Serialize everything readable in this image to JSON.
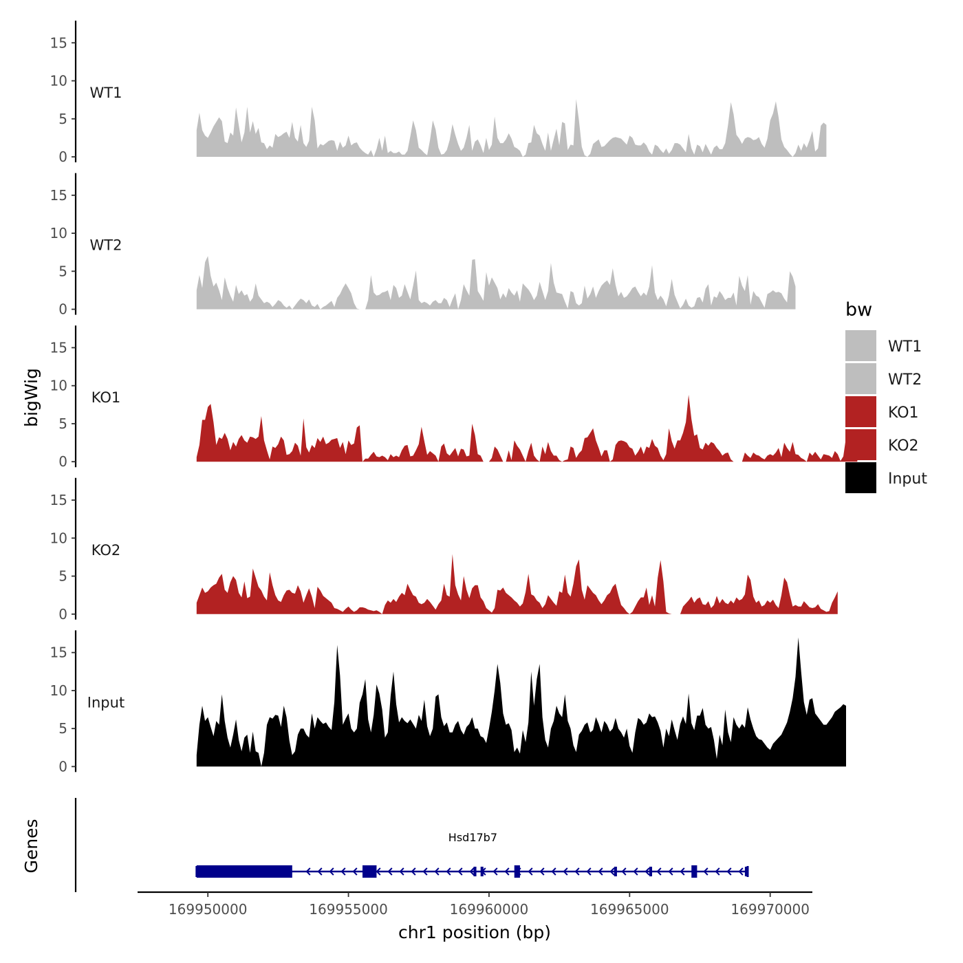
{
  "chart_data": {
    "type": "area",
    "title": "",
    "xlabel": "chr1 position (bp)",
    "ylabel": "bigWig",
    "genes_panel_label": "Genes",
    "legend": {
      "title": "bw",
      "position": "right",
      "entries": [
        {
          "label": "WT1",
          "color": "#bebebe"
        },
        {
          "label": "WT2",
          "color": "#bebebe"
        },
        {
          "label": "KO1",
          "color": "#b22222"
        },
        {
          "label": "KO2",
          "color": "#b22222"
        },
        {
          "label": "Input",
          "color": "#000000"
        }
      ]
    },
    "xlim": [
      169947500,
      169971500
    ],
    "x_ticks": [
      169950000,
      169955000,
      169960000,
      169965000,
      169970000
    ],
    "x_tick_labels": [
      "169950000",
      "169955000",
      "169960000",
      "169965000",
      "169970000"
    ],
    "ylim": [
      0,
      18
    ],
    "y_ticks": [
      0,
      5,
      10,
      15
    ],
    "y_tick_labels": [
      "0",
      "5",
      "10",
      "15"
    ],
    "x_start": 169949600,
    "x_step": 100,
    "series": [
      {
        "name": "WT1",
        "color": "#bebebe",
        "values": [
          3.5,
          5.8,
          3.5,
          2.8,
          2.5,
          3.2,
          4.0,
          4.6,
          5.2,
          4.7,
          2.0,
          1.8,
          3.2,
          2.8,
          6.5,
          4.2,
          1.9,
          3.2,
          6.6,
          3.2,
          4.7,
          3.0,
          3.8,
          1.9,
          1.8,
          1.0,
          1.5,
          1.2,
          3.0,
          2.6,
          2.8,
          3.1,
          3.3,
          2.5,
          4.6,
          2.5,
          2.0,
          4.2,
          1.8,
          1.3,
          2.1,
          6.6,
          4.8,
          1.1,
          1.7,
          1.5,
          1.8,
          2.1,
          2.2,
          2.1,
          0.8,
          2.0,
          1.2,
          1.5,
          2.8,
          1.5,
          1.8,
          1.9,
          1.2,
          0.8,
          0.5,
          0.3,
          0.9,
          0,
          1.0,
          2.5,
          0.8,
          2.8,
          0.5,
          0.8,
          0.5,
          0.5,
          0.7,
          0.3,
          0.3,
          0.8,
          2.7,
          4.8,
          3.5,
          1.2,
          0.9,
          0.5,
          0.2,
          2.2,
          4.8,
          3.6,
          1.2,
          0.3,
          0.4,
          0.9,
          2.2,
          4.3,
          2.9,
          1.7,
          0.8,
          1.2,
          2.5,
          4.2,
          0.8,
          2.0,
          2.3,
          1.5,
          0.5,
          2.5,
          0.9,
          1.6,
          5.3,
          2.5,
          1.8,
          1.8,
          2.3,
          3.1,
          2.4,
          1.3,
          1.1,
          0.8,
          0,
          0.3,
          1.8,
          1.9,
          4.2,
          3.1,
          2.8,
          1.7,
          0.8,
          3.2,
          0.8,
          2.3,
          3.7,
          1.5,
          4.6,
          4.4,
          0.9,
          1.6,
          1.5,
          7.6,
          4.8,
          1.3,
          0.2,
          0,
          0.4,
          1.7,
          2.0,
          2.3,
          1.3,
          1.4,
          1.8,
          2.2,
          2.5,
          2.6,
          2.5,
          2.4,
          2.0,
          1.6,
          2.8,
          2.5,
          1.6,
          1.5,
          1.5,
          1.9,
          1.5,
          0.7,
          0.3,
          1.6,
          1.4,
          0.9,
          0.5,
          1.1,
          0.4,
          0.9,
          1.8,
          1.8,
          1.6,
          1.1,
          0.6,
          3.0,
          1.1,
          0.3,
          1.6,
          1.4,
          0.6,
          1.7,
          1.0,
          0.3,
          1.2,
          1.5,
          1.0,
          1.0,
          1.8,
          4.2,
          7.2,
          5.6,
          2.9,
          2.4,
          1.7,
          2.4,
          2.6,
          2.5,
          2.2,
          2.3,
          2.6,
          1.7,
          1.2,
          2.4,
          4.8,
          5.7,
          7.3,
          5.2,
          2.3,
          1.3,
          0.9,
          0.4,
          0,
          0.5,
          1.6,
          0.8,
          1.8,
          1.2,
          2.2,
          3.4,
          0.7,
          1.1,
          4.1,
          4.5,
          4.2
        ]
      },
      {
        "name": "WT2",
        "color": "#bebebe",
        "values": [
          2.5,
          4.5,
          2.8,
          6.2,
          7.0,
          4.4,
          3.0,
          3.5,
          2.5,
          1.2,
          4.2,
          2.8,
          1.8,
          1.0,
          3.2,
          2.0,
          2.5,
          1.8,
          2.0,
          1.0,
          1.5,
          3.4,
          1.8,
          1.3,
          0.8,
          1.0,
          0.8,
          0.3,
          0.7,
          1.2,
          1.0,
          0.5,
          0.2,
          0.5,
          0,
          0.5,
          1.0,
          1.4,
          1.2,
          0.8,
          1.3,
          0.5,
          0.3,
          0.7,
          0,
          0.3,
          0.5,
          0.8,
          1.1,
          0.3,
          1.5,
          2.0,
          2.8,
          3.4,
          2.8,
          2.1,
          0.8,
          0.1,
          0,
          0,
          0,
          1.2,
          4.5,
          2.2,
          1.8,
          1.9,
          2.2,
          2.3,
          2.5,
          1.2,
          3.2,
          2.8,
          1.5,
          1.8,
          3.3,
          2.3,
          1.3,
          3.1,
          5.1,
          1.2,
          0.8,
          1.0,
          0.8,
          0.5,
          1.0,
          1.2,
          0.8,
          0.8,
          1.5,
          1.2,
          0.3,
          1.3,
          2.1,
          0,
          1.2,
          3.3,
          2.5,
          1.8,
          6.5,
          6.6,
          2.4,
          1.8,
          1.1,
          4.9,
          3.1,
          4.2,
          3.5,
          2.8,
          1.3,
          2.1,
          1.5,
          2.8,
          2.2,
          1.8,
          2.5,
          1.0,
          3.4,
          3.0,
          2.6,
          2.0,
          1.2,
          1.8,
          3.6,
          2.4,
          1.2,
          2.4,
          6.1,
          3.5,
          2.2,
          2.1,
          2.0,
          1.0,
          0.1,
          2.4,
          2.2,
          0.8,
          0.5,
          0.8,
          3.1,
          1.4,
          2.0,
          3.0,
          1.5,
          2.4,
          3.1,
          3.5,
          3.8,
          3.2,
          5.4,
          3.2,
          1.7,
          2.3,
          1.5,
          1.7,
          2.2,
          2.8,
          3.0,
          2.3,
          1.7,
          2.2,
          1.8,
          3.0,
          5.8,
          2.2,
          1.2,
          1.8,
          1.3,
          0.4,
          1.8,
          4.0,
          1.9,
          1.0,
          0.1,
          0.6,
          1.4,
          0.5,
          0.2,
          0.4,
          1.5,
          1.6,
          0.9,
          2.7,
          3.3,
          0.5,
          1.7,
          1.5,
          2.4,
          1.9,
          1.2,
          1.5,
          1.5,
          2.2,
          0.5,
          4.4,
          3.1,
          2.4,
          4.5,
          0.6,
          2.4,
          1.8,
          1.6,
          0.9,
          0.2,
          2.0,
          2.2,
          2.5,
          2.2,
          2.3,
          2.1,
          1.4,
          0.9,
          5.0,
          4.3,
          3.0
        ]
      },
      {
        "name": "KO1",
        "color": "#b22222",
        "values": [
          0.6,
          2.2,
          5.5,
          5.5,
          7.2,
          7.6,
          5.2,
          2.2,
          3.2,
          3.0,
          3.8,
          3.0,
          1.5,
          2.6,
          2.0,
          3.0,
          3.5,
          2.8,
          2.5,
          3.3,
          3.2,
          3.0,
          3.3,
          6.0,
          2.8,
          1.5,
          0.3,
          2.0,
          1.8,
          2.3,
          3.3,
          2.8,
          0.9,
          1.0,
          1.4,
          2.5,
          2.1,
          0.8,
          5.7,
          1.9,
          1.2,
          2.2,
          1.8,
          3.1,
          2.6,
          3.3,
          2.3,
          2.5,
          2.9,
          3.0,
          3.1,
          1.8,
          2.6,
          1.0,
          2.8,
          2.2,
          2.4,
          4.5,
          4.8,
          0,
          0.4,
          0.4,
          0.9,
          1.3,
          0.7,
          0.6,
          0.8,
          0.6,
          0.2,
          1.0,
          0.6,
          0.8,
          0.6,
          1.5,
          2.1,
          2.2,
          0.7,
          0.8,
          1.5,
          2.3,
          4.6,
          2.7,
          0.9,
          1.4,
          1.1,
          0.8,
          0,
          2.0,
          2.4,
          1.1,
          0.8,
          1.3,
          1.8,
          0.7,
          1.7,
          1.6,
          0.7,
          0.8,
          5.0,
          3.5,
          1.0,
          0.8,
          0,
          0,
          0,
          0.5,
          2.0,
          1.6,
          0.8,
          0,
          0,
          1.5,
          0.2,
          2.8,
          2.1,
          1.6,
          0.8,
          0,
          1.4,
          2.5,
          0.8,
          0.3,
          0,
          2.0,
          1.0,
          2.6,
          1.4,
          0.8,
          0.8,
          0.2,
          0,
          0.2,
          0.3,
          2.0,
          1.8,
          0.5,
          1.1,
          1.5,
          3.1,
          3.2,
          3.8,
          4.4,
          2.8,
          1.8,
          0.7,
          1.5,
          1.5,
          0,
          0.3,
          2.2,
          2.7,
          2.8,
          2.7,
          2.5,
          1.9,
          1.7,
          0.8,
          1.3,
          2.0,
          1.0,
          2.0,
          1.8,
          3.0,
          2.1,
          1.8,
          0.8,
          0.2,
          1.0,
          4.4,
          2.7,
          1.7,
          2.8,
          2.8,
          3.8,
          5.2,
          8.8,
          5.6,
          3.4,
          3.6,
          1.8,
          1.6,
          2.5,
          2.1,
          2.6,
          2.4,
          1.8,
          1.4,
          0.8,
          1.1,
          1.2,
          0.3,
          0,
          0,
          0,
          0,
          1.2,
          0.8,
          0.5,
          1.2,
          0.9,
          0.8,
          0.5,
          0.3,
          0.8,
          1.0,
          0.8,
          1.2,
          1.8,
          0.6,
          2.5,
          1.8,
          1.3,
          2.6,
          1.0,
          0.9,
          0.5,
          0.3,
          0,
          1.2,
          0.8,
          1.3,
          0.8,
          0.3,
          1.0,
          0.9,
          0.8,
          0.5,
          1.4,
          1.0,
          0.1,
          0.7,
          3.2,
          3.7,
          2.1,
          0.6,
          2.0
        ]
      },
      {
        "name": "KO2",
        "color": "#b22222",
        "values": [
          1.5,
          2.5,
          3.5,
          2.8,
          3.0,
          3.5,
          3.8,
          4.0,
          4.8,
          5.3,
          3.2,
          2.8,
          4.2,
          5.0,
          4.5,
          2.8,
          2.2,
          4.3,
          2.1,
          2.3,
          6.0,
          4.8,
          3.6,
          3.1,
          2.3,
          1.8,
          5.5,
          3.8,
          2.5,
          1.8,
          1.6,
          2.5,
          3.1,
          3.2,
          2.8,
          2.7,
          3.8,
          3.0,
          1.5,
          2.5,
          3.4,
          2.3,
          0.8,
          3.6,
          3.1,
          2.4,
          2.1,
          1.8,
          1.5,
          0.8,
          0.7,
          0.5,
          0.3,
          0.7,
          1.0,
          0.6,
          0.3,
          0.5,
          0.9,
          0.9,
          0.8,
          0.6,
          0.5,
          0.4,
          0.5,
          0.3,
          0,
          1.2,
          1.8,
          1.5,
          2.0,
          1.6,
          2.3,
          2.8,
          2.5,
          4.0,
          3.2,
          2.5,
          2.3,
          1.5,
          1.3,
          1.5,
          2.0,
          1.6,
          1.1,
          0.6,
          1.3,
          1.8,
          4.0,
          2.5,
          2.3,
          7.9,
          3.8,
          2.6,
          1.8,
          5.0,
          3.2,
          2.1,
          3.4,
          3.8,
          3.8,
          2.2,
          1.7,
          0.8,
          0.5,
          0.2,
          0.8,
          3.2,
          3.1,
          3.5,
          2.8,
          2.5,
          2.2,
          1.8,
          1.5,
          1.0,
          1.4,
          2.9,
          5.3,
          2.6,
          2.4,
          1.8,
          1.5,
          0.8,
          1.3,
          2.5,
          2.0,
          1.5,
          1.1,
          3.0,
          2.8,
          5.2,
          2.8,
          2.3,
          4.0,
          6.3,
          7.2,
          3.2,
          1.9,
          3.8,
          3.3,
          2.8,
          2.5,
          1.8,
          1.3,
          1.8,
          2.5,
          2.8,
          3.6,
          4.0,
          2.5,
          1.2,
          0.8,
          0.3,
          0,
          0.3,
          1.0,
          1.7,
          2.2,
          2.2,
          3.5,
          1.2,
          2.5,
          1.0,
          4.8,
          7.1,
          4.3,
          0.3,
          0.1,
          0,
          0,
          0,
          0,
          1.0,
          1.4,
          1.8,
          2.3,
          1.5,
          2.0,
          2.2,
          1.3,
          1.2,
          1.7,
          0.8,
          1.2,
          2.4,
          1.4,
          2.0,
          1.5,
          1.3,
          1.8,
          1.4,
          2.2,
          1.8,
          2.0,
          2.6,
          5.2,
          4.5,
          2.3,
          1.5,
          1.8,
          1.0,
          1.2,
          1.8,
          1.5,
          1.9,
          1.2,
          0.8,
          2.5,
          4.8,
          4.2,
          2.5,
          1.0,
          1.2,
          1.0,
          1.0,
          1.7,
          1.3,
          0.9,
          0.8,
          0.9,
          1.3,
          0.7,
          0.5,
          0.3,
          0.4,
          1.5,
          2.2,
          3.0
        ]
      },
      {
        "name": "Input",
        "color": "#000000",
        "values": [
          1.5,
          5.5,
          8.0,
          6.0,
          6.5,
          5.2,
          4.0,
          6.0,
          5.5,
          9.5,
          6.0,
          3.8,
          2.5,
          4.2,
          6.2,
          3.5,
          2.0,
          3.8,
          4.2,
          1.8,
          4.6,
          2.0,
          1.8,
          0,
          1.8,
          5.5,
          6.5,
          6.3,
          6.8,
          6.7,
          5.2,
          8.0,
          6.5,
          3.4,
          1.5,
          2.0,
          4.2,
          5.0,
          5.0,
          4.2,
          3.8,
          7.0,
          5.0,
          6.5,
          6.0,
          5.6,
          5.8,
          5.2,
          4.8,
          8.5,
          16.0,
          12.0,
          5.5,
          6.3,
          7.0,
          5.0,
          4.5,
          5.0,
          8.4,
          9.5,
          11.5,
          6.2,
          4.5,
          6.8,
          10.8,
          9.6,
          7.5,
          3.8,
          4.5,
          9.3,
          12.5,
          8.2,
          5.8,
          6.5,
          6.0,
          5.7,
          6.2,
          5.6,
          5.0,
          6.8,
          6.0,
          8.8,
          5.3,
          4.0,
          5.0,
          9.2,
          9.5,
          6.5,
          5.3,
          5.8,
          4.5,
          4.5,
          5.5,
          6.0,
          4.8,
          4.2,
          5.2,
          5.6,
          6.5,
          5.0,
          5.0,
          4.0,
          3.8,
          3.1,
          5.0,
          7.2,
          10.0,
          13.5,
          11.0,
          7.0,
          5.5,
          5.7,
          4.8,
          1.9,
          2.5,
          1.7,
          4.8,
          3.2,
          5.8,
          12.5,
          8.0,
          11.5,
          13.5,
          6.5,
          3.5,
          2.5,
          5.0,
          6.0,
          8.0,
          7.0,
          6.5,
          9.5,
          6.0,
          5.0,
          2.8,
          1.9,
          4.2,
          4.7,
          5.5,
          5.8,
          4.5,
          4.8,
          6.5,
          5.6,
          4.5,
          6.0,
          5.5,
          4.6,
          5.0,
          6.4,
          5.0,
          4.5,
          3.8,
          5.0,
          2.7,
          1.8,
          4.5,
          6.4,
          6.1,
          5.5,
          5.8,
          7.0,
          6.5,
          6.6,
          5.8,
          4.7,
          2.5,
          5.0,
          4.0,
          6.2,
          4.8,
          3.5,
          5.6,
          6.6,
          5.6,
          9.6,
          5.7,
          4.8,
          6.7,
          6.7,
          7.7,
          5.5,
          5.0,
          5.2,
          3.5,
          1.0,
          4.2,
          2.8,
          7.5,
          4.5,
          3.2,
          6.5,
          5.5,
          5.0,
          5.6,
          5.1,
          7.8,
          6.2,
          5.0,
          4.0,
          3.6,
          3.5,
          3.0,
          2.5,
          2.2,
          3.0,
          3.4,
          3.8,
          4.2,
          5.0,
          5.8,
          7.2,
          9.0,
          11.8,
          17.0,
          12.5,
          8.5,
          6.8,
          8.8,
          9.0,
          7.0,
          6.5,
          6.0,
          5.5,
          5.5,
          6.0,
          6.5,
          7.2,
          7.5,
          7.8,
          8.2,
          8.0
        ]
      }
    ],
    "genes": [
      {
        "name": "Hsd17b7",
        "strand": "-",
        "color": "#00008b",
        "tx_start": 169949600,
        "tx_end": 169969200,
        "exons": [
          {
            "start": 169949600,
            "end": 169953000,
            "thick": true
          },
          {
            "start": 169955500,
            "end": 169956000,
            "thick": true
          },
          {
            "start": 169959450,
            "end": 169959550,
            "thick": false
          },
          {
            "start": 169959700,
            "end": 169959800,
            "thick": false
          },
          {
            "start": 169960900,
            "end": 169961100,
            "thick": true
          },
          {
            "start": 169964450,
            "end": 169964550,
            "thick": false
          },
          {
            "start": 169965700,
            "end": 169965800,
            "thick": false
          },
          {
            "start": 169967200,
            "end": 169967400,
            "thick": true
          },
          {
            "start": 169969100,
            "end": 169969200,
            "thick": false
          }
        ]
      }
    ]
  }
}
